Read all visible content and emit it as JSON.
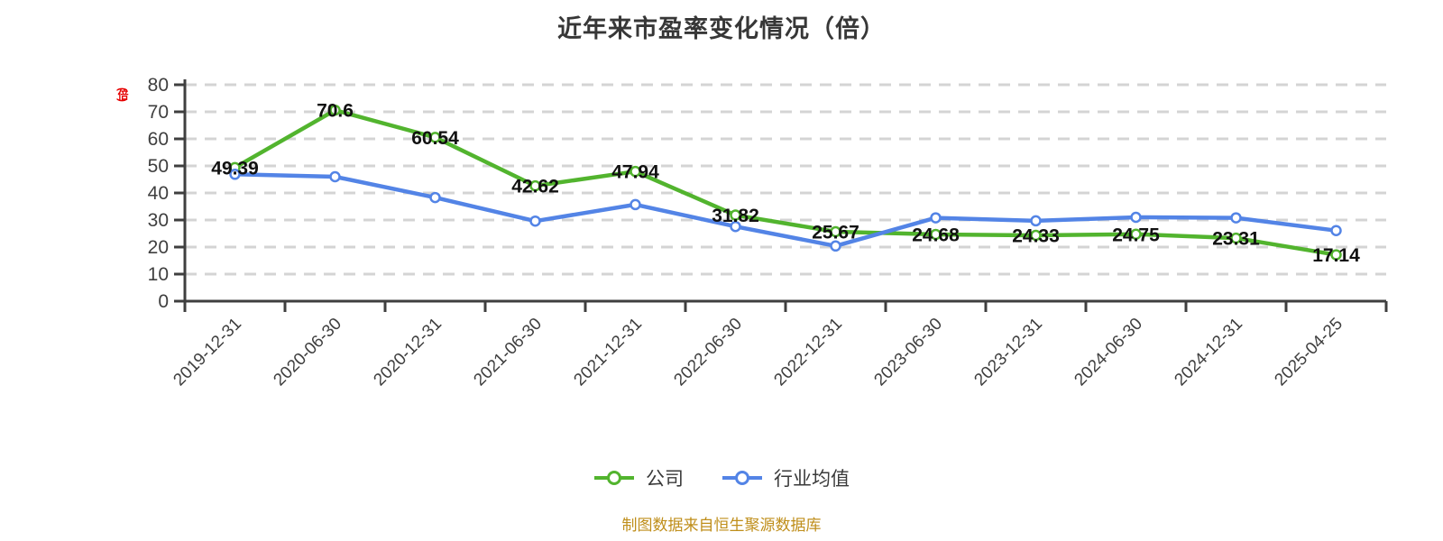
{
  "title": "近年来市盈率变化情况（倍）",
  "y_axis_unit": "(倍)",
  "footer": "制图数据来自恒生聚源数据库",
  "legend": [
    {
      "label": "公司",
      "color": "#52b42e"
    },
    {
      "label": "行业均值",
      "color": "#5384e6"
    }
  ],
  "colors": {
    "company_line": "#52b42e",
    "industry_line": "#5384e6",
    "marker_fill": "#ffffff",
    "axis": "#3f3f3f",
    "gridline": "#d4d4d4",
    "tick_label": "#3f3f3f",
    "data_label": "#111111",
    "title": "#373737",
    "footer": "#bf8e1a",
    "y_unit": "#e60000"
  },
  "chart_data": {
    "type": "line",
    "title": "近年来市盈率变化情况（倍）",
    "xlabel": "",
    "ylabel": "(倍)",
    "categories": [
      "2019-12-31",
      "2020-06-30",
      "2020-12-31",
      "2021-06-30",
      "2021-12-31",
      "2022-06-30",
      "2022-12-31",
      "2023-06-30",
      "2023-12-31",
      "2024-06-30",
      "2024-12-31",
      "2025-04-25"
    ],
    "series": [
      {
        "name": "公司",
        "color": "#52b42e",
        "values": [
          49.39,
          70.6,
          60.54,
          42.62,
          47.94,
          31.82,
          25.67,
          24.68,
          24.33,
          24.75,
          23.31,
          17.14
        ],
        "labels_shown": true
      },
      {
        "name": "行业均值",
        "color": "#5384e6",
        "values": [
          46.9,
          46.0,
          38.3,
          29.6,
          35.7,
          27.6,
          20.4,
          30.8,
          29.7,
          31.0,
          30.8,
          26.1
        ],
        "labels_shown": false,
        "values_estimated": true
      }
    ],
    "ylim": [
      0,
      80
    ],
    "yticks": [
      0,
      10,
      20,
      30,
      40,
      50,
      60,
      70,
      80
    ],
    "grid": "dashed-horizontal",
    "legend_position": "bottom",
    "x_tick_label_rotation": -45
  }
}
